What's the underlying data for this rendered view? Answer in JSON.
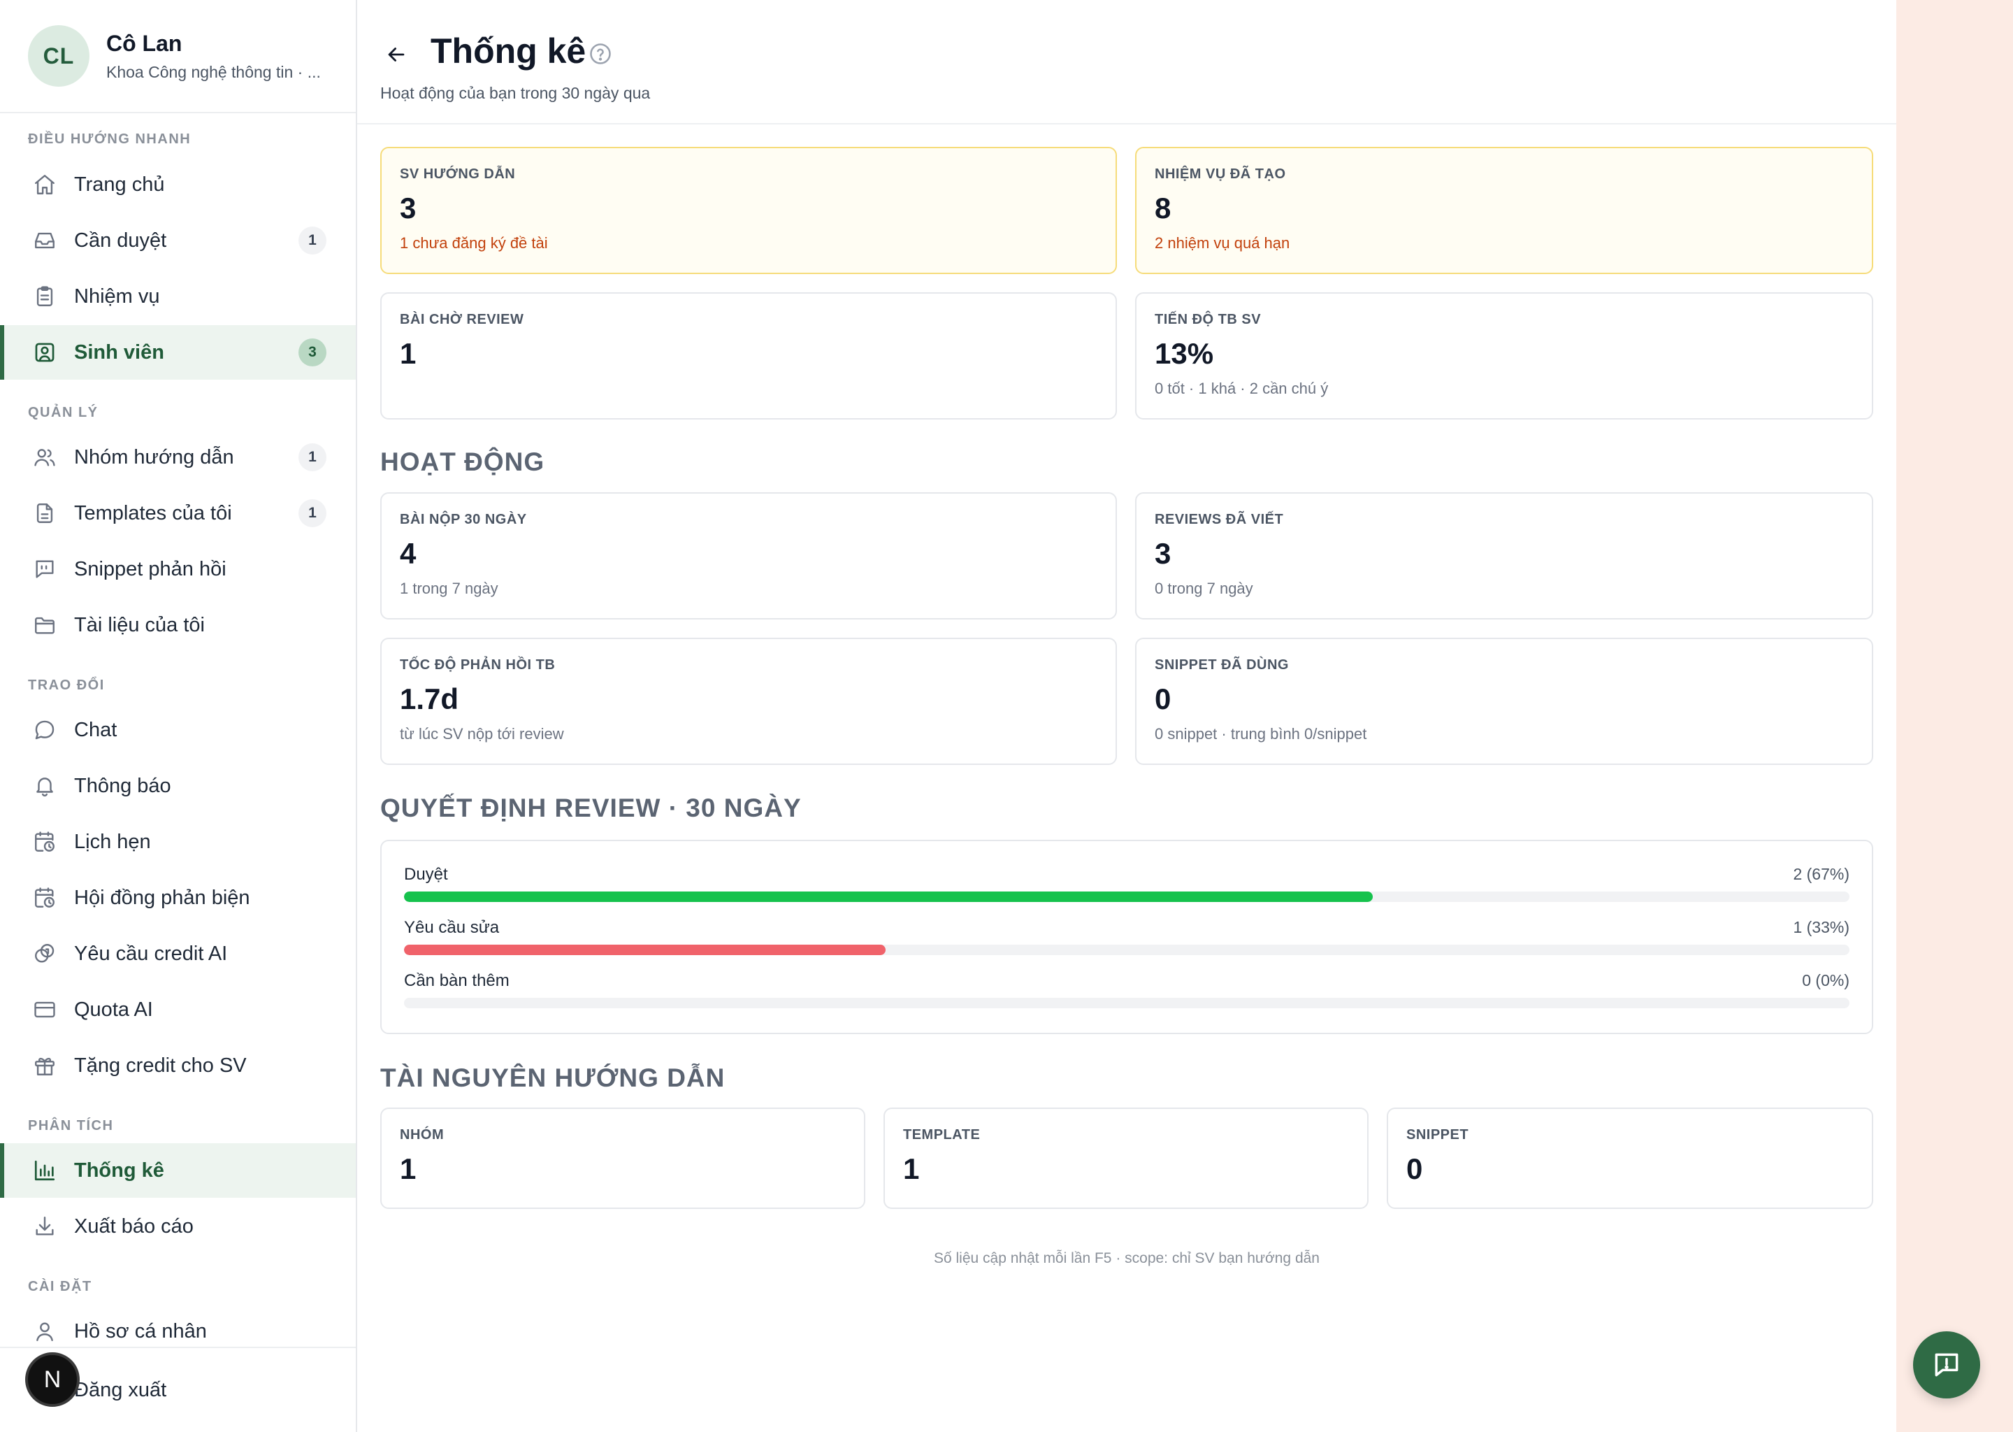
{
  "profile": {
    "initials": "CL",
    "name": "Cô Lan",
    "department": "Khoa Công nghệ thông tin · ..."
  },
  "nav": {
    "sections": {
      "quick": "Điều hướng nhanh",
      "manage": "Quản lý",
      "exchange": "Trao đổi",
      "analytics": "Phân tích",
      "settings": "Cài đặt"
    },
    "items": {
      "home": {
        "label": "Trang chủ",
        "icon": "home-icon"
      },
      "review": {
        "label": "Cần duyệt",
        "icon": "inbox-icon",
        "badge": "1"
      },
      "tasks": {
        "label": "Nhiệm vụ",
        "icon": "clipboard-icon"
      },
      "students": {
        "label": "Sinh viên",
        "icon": "user-square-icon",
        "badge": "3"
      },
      "groups": {
        "label": "Nhóm hướng dẫn",
        "icon": "users-icon",
        "badge": "1"
      },
      "templates": {
        "label": "Templates của tôi",
        "icon": "file-icon",
        "badge": "1"
      },
      "snippets": {
        "label": "Snippet phản hồi",
        "icon": "quote-icon"
      },
      "documents": {
        "label": "Tài liệu của tôi",
        "icon": "folder-icon"
      },
      "chat": {
        "label": "Chat",
        "icon": "chat-icon"
      },
      "notifications": {
        "label": "Thông báo",
        "icon": "bell-icon"
      },
      "appointments": {
        "label": "Lịch hẹn",
        "icon": "calendar-clock-icon"
      },
      "council": {
        "label": "Hội đồng phản biện",
        "icon": "calendar-clock-icon"
      },
      "credit_request": {
        "label": "Yêu cầu credit AI",
        "icon": "coins-icon"
      },
      "quota": {
        "label": "Quota AI",
        "icon": "credit-card-icon"
      },
      "gift_credit": {
        "label": "Tặng credit cho SV",
        "icon": "gift-icon"
      },
      "stats": {
        "label": "Thống kê",
        "icon": "bar-chart-icon"
      },
      "export": {
        "label": "Xuất báo cáo",
        "icon": "download-icon"
      },
      "profile": {
        "label": "Hồ sơ cá nhân",
        "icon": "user-icon"
      },
      "logout": {
        "label": "Đăng xuất",
        "icon": "logout-icon"
      }
    },
    "active": "stats"
  },
  "bubble": {
    "letter": "N"
  },
  "header": {
    "title": "Thống kê",
    "subtitle": "Hoạt động của bạn trong 30 ngày qua"
  },
  "overview": {
    "students": {
      "label": "SV hướng dẫn",
      "value": "3",
      "note": "1 chưa đăng ký đề tài"
    },
    "tasks": {
      "label": "Nhiệm vụ đã tạo",
      "value": "8",
      "note": "2 nhiệm vụ quá hạn"
    },
    "pending": {
      "label": "Bài chờ review",
      "value": "1"
    },
    "progress": {
      "label": "Tiến độ TB SV",
      "value": "13%",
      "note": "0 tốt · 1 khá · 2 cần chú ý"
    }
  },
  "activity": {
    "title": "Hoạt động",
    "submissions": {
      "label": "Bài nộp 30 ngày",
      "value": "4",
      "note": "1 trong 7 ngày"
    },
    "reviews": {
      "label": "Reviews đã viết",
      "value": "3",
      "note": "0 trong 7 ngày"
    },
    "response": {
      "label": "Tốc độ phản hồi TB",
      "value": "1.7d",
      "note": "từ lúc SV nộp tới review"
    },
    "snippet_used": {
      "label": "Snippet đã dùng",
      "value": "0",
      "note": "0 snippet · trung bình 0/snippet"
    }
  },
  "decisions": {
    "title": "Quyết định review · 30 ngày",
    "rows": [
      {
        "label": "Duyệt",
        "value": "2 (67%)",
        "fraction": 0.67,
        "color": "#16c24d"
      },
      {
        "label": "Yêu cầu sửa",
        "value": "1 (33%)",
        "fraction": 0.333,
        "color": "#f0626a"
      },
      {
        "label": "Cần bàn thêm",
        "value": "0 (0%)",
        "fraction": 0,
        "color": "#9ca3af"
      }
    ]
  },
  "resources": {
    "title": "Tài nguyên hướng dẫn",
    "groups": {
      "label": "Nhóm",
      "value": "1"
    },
    "templates": {
      "label": "Template",
      "value": "1"
    },
    "snippets": {
      "label": "Snippet",
      "value": "0"
    }
  },
  "footer": "Số liệu cập nhật mỗi lần F5 · scope: chỉ SV bạn hướng dẫn",
  "colors": {
    "accent": "#2f6b45",
    "warning_border": "#f6dc7a",
    "warning_text": "#c2410c"
  }
}
